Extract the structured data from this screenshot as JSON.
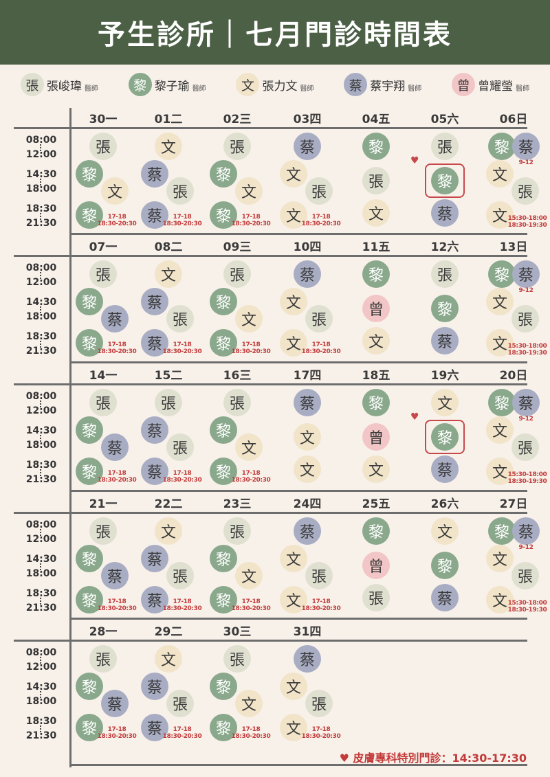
{
  "title": "予生診所｜七月門診時間表",
  "doctors": {
    "z": {
      "char": "張",
      "name": "張峻瑋",
      "title": "醫師",
      "color": "#dfe0cf",
      "dark": false
    },
    "l": {
      "char": "黎",
      "name": "黎子瑜",
      "title": "醫師",
      "color": "#8aa98c",
      "dark": true
    },
    "w": {
      "char": "文",
      "name": "張力文",
      "title": "醫師",
      "color": "#f1e4c9",
      "dark": false
    },
    "c": {
      "char": "蔡",
      "name": "蔡宇翔",
      "title": "醫師",
      "color": "#a9adc4",
      "dark": false
    },
    "g": {
      "char": "曾",
      "name": "曾耀瑩",
      "title": "醫師",
      "color": "#f2c6c6",
      "dark": false
    }
  },
  "legend_order": [
    "z",
    "l",
    "w",
    "c",
    "g"
  ],
  "time_slots": [
    [
      "08:00",
      "12:00"
    ],
    [
      "14:30",
      "18:00"
    ],
    [
      "18:30",
      "21:30"
    ]
  ],
  "notes": {
    "a": [
      "17-18",
      "18:30-20:30"
    ],
    "b": [
      "9-12"
    ],
    "c": [
      "15:30-18:00",
      "18:30-19:30"
    ]
  },
  "weeks": [
    {
      "days": [
        {
          "label": "30一",
          "m": [
            "z"
          ],
          "a": [
            "l",
            "w"
          ],
          "e": [
            "l"
          ],
          "note": "a"
        },
        {
          "label": "01二",
          "m": [
            "w"
          ],
          "a": [
            "c",
            "z"
          ],
          "e": [
            "c"
          ],
          "note": "a"
        },
        {
          "label": "02三",
          "m": [
            "z"
          ],
          "a": [
            "l",
            "w"
          ],
          "e": [
            "l"
          ],
          "note": "a"
        },
        {
          "label": "03四",
          "m": [
            "c"
          ],
          "a": [
            "w",
            "z"
          ],
          "e": [
            "w"
          ],
          "note": "a"
        },
        {
          "label": "04五",
          "m": [
            "l"
          ],
          "a": [
            "z"
          ],
          "e": [
            "w"
          ]
        },
        {
          "label": "05六",
          "m": [
            "z"
          ],
          "a": [
            "l"
          ],
          "e": [
            "c"
          ],
          "special": true
        },
        {
          "label": "06日",
          "m": [
            "l",
            "c"
          ],
          "mnote": "b",
          "a": [
            "w",
            "z"
          ],
          "e": [
            "w"
          ],
          "note": "c"
        }
      ]
    },
    {
      "days": [
        {
          "label": "07一",
          "m": [
            "z"
          ],
          "a": [
            "l",
            "c"
          ],
          "e": [
            "l"
          ],
          "note": "a"
        },
        {
          "label": "08二",
          "m": [
            "w"
          ],
          "a": [
            "c",
            "z"
          ],
          "e": [
            "c"
          ],
          "note": "a"
        },
        {
          "label": "09三",
          "m": [
            "z"
          ],
          "a": [
            "l",
            "w"
          ],
          "e": [
            "l"
          ],
          "note": "a"
        },
        {
          "label": "10四",
          "m": [
            "c"
          ],
          "a": [
            "w",
            "z"
          ],
          "e": [
            "w"
          ],
          "note": "a"
        },
        {
          "label": "11五",
          "m": [
            "l"
          ],
          "a": [
            "g"
          ],
          "e": [
            "w"
          ]
        },
        {
          "label": "12六",
          "m": [
            "z"
          ],
          "a": [
            "l"
          ],
          "e": [
            "c"
          ]
        },
        {
          "label": "13日",
          "m": [
            "l",
            "c"
          ],
          "mnote": "b",
          "a": [
            "w",
            "z"
          ],
          "e": [
            "w"
          ],
          "note": "c"
        }
      ]
    },
    {
      "days": [
        {
          "label": "14一",
          "m": [
            "z"
          ],
          "a": [
            "l",
            "c"
          ],
          "e": [
            "l"
          ],
          "note": "a"
        },
        {
          "label": "15二",
          "m": [
            "z"
          ],
          "a": [
            "c",
            "z"
          ],
          "e": [
            "c"
          ],
          "note": "a"
        },
        {
          "label": "16三",
          "m": [
            "z"
          ],
          "a": [
            "l",
            "w"
          ],
          "e": [
            "l"
          ],
          "note": "a"
        },
        {
          "label": "17四",
          "m": [
            "c"
          ],
          "a": [
            "w"
          ],
          "e": [
            "w"
          ]
        },
        {
          "label": "18五",
          "m": [
            "l"
          ],
          "a": [
            "g"
          ],
          "e": [
            "w"
          ]
        },
        {
          "label": "19六",
          "m": [
            "w"
          ],
          "a": [
            "l"
          ],
          "e": [
            "c"
          ],
          "special": true
        },
        {
          "label": "20日",
          "m": [
            "l",
            "c"
          ],
          "mnote": "b",
          "a": [
            "w",
            "z"
          ],
          "e": [
            "w"
          ],
          "note": "c"
        }
      ]
    },
    {
      "days": [
        {
          "label": "21一",
          "m": [
            "z"
          ],
          "a": [
            "l",
            "c"
          ],
          "e": [
            "l"
          ],
          "note": "a"
        },
        {
          "label": "22二",
          "m": [
            "w"
          ],
          "a": [
            "c",
            "z"
          ],
          "e": [
            "c"
          ],
          "note": "a"
        },
        {
          "label": "23三",
          "m": [
            "z"
          ],
          "a": [
            "l",
            "w"
          ],
          "e": [
            "l"
          ],
          "note": "a"
        },
        {
          "label": "24四",
          "m": [
            "c"
          ],
          "a": [
            "w",
            "z"
          ],
          "e": [
            "w"
          ],
          "note": "a"
        },
        {
          "label": "25五",
          "m": [
            "l"
          ],
          "a": [
            "g"
          ],
          "e": [
            "z"
          ]
        },
        {
          "label": "26六",
          "m": [
            "w"
          ],
          "a": [
            "l"
          ],
          "e": [
            "c"
          ]
        },
        {
          "label": "27日",
          "m": [
            "l",
            "c"
          ],
          "mnote": "b",
          "a": [
            "w",
            "z"
          ],
          "e": [
            "w"
          ],
          "note": "c"
        }
      ]
    },
    {
      "days": [
        {
          "label": "28一",
          "m": [
            "z"
          ],
          "a": [
            "l",
            "c"
          ],
          "e": [
            "l"
          ],
          "note": "a"
        },
        {
          "label": "29二",
          "m": [
            "w"
          ],
          "a": [
            "c",
            "z"
          ],
          "e": [
            "c"
          ],
          "note": "a"
        },
        {
          "label": "30三",
          "m": [
            "z"
          ],
          "a": [
            "l",
            "w"
          ],
          "e": [
            "l"
          ],
          "note": "a"
        },
        {
          "label": "31四",
          "m": [
            "c"
          ],
          "a": [
            "w",
            "z"
          ],
          "e": [
            "w"
          ],
          "note": "a"
        }
      ]
    }
  ],
  "footer": "皮膚專科特別門診：14:30-17:30",
  "heart_glyph": "♥"
}
